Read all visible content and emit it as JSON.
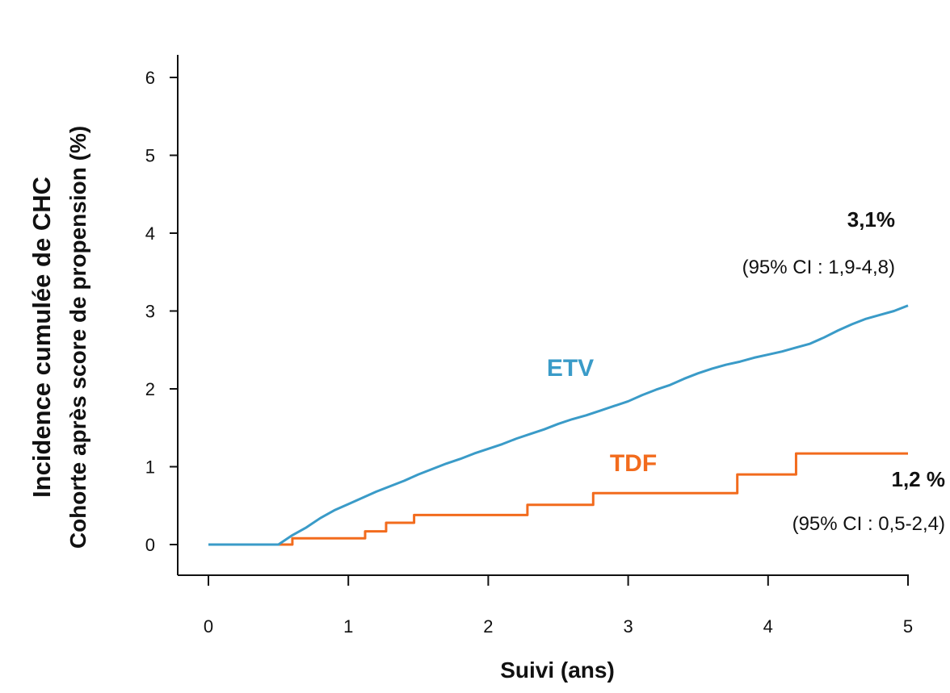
{
  "chart_data": {
    "type": "line",
    "title": "",
    "ylabel_line1": "Incidence cumulée de CHC",
    "ylabel_line2": "Cohorte après score de propension (%)",
    "xlabel": "Suivi (ans)",
    "xlim": [
      0,
      5
    ],
    "ylim": [
      0,
      6
    ],
    "xticks": [
      0,
      1,
      2,
      3,
      4,
      5
    ],
    "yticks": [
      0,
      1,
      2,
      3,
      4,
      5,
      6
    ],
    "grid": false,
    "series": [
      {
        "name": "ETV",
        "color": "#3a9bc8",
        "step": false,
        "x": [
          0,
          0.5,
          0.6,
          0.7,
          0.8,
          0.9,
          1.0,
          1.1,
          1.2,
          1.3,
          1.4,
          1.5,
          1.6,
          1.7,
          1.8,
          1.9,
          2.0,
          2.1,
          2.2,
          2.3,
          2.4,
          2.5,
          2.6,
          2.7,
          2.8,
          2.9,
          3.0,
          3.1,
          3.2,
          3.3,
          3.4,
          3.5,
          3.6,
          3.7,
          3.8,
          3.9,
          4.0,
          4.1,
          4.2,
          4.3,
          4.4,
          4.5,
          4.6,
          4.7,
          4.8,
          4.9,
          5.0
        ],
        "values": [
          0,
          0,
          0.12,
          0.22,
          0.34,
          0.44,
          0.52,
          0.6,
          0.68,
          0.75,
          0.82,
          0.9,
          0.97,
          1.04,
          1.1,
          1.17,
          1.23,
          1.29,
          1.36,
          1.42,
          1.48,
          1.55,
          1.61,
          1.66,
          1.72,
          1.78,
          1.84,
          1.92,
          1.99,
          2.05,
          2.13,
          2.2,
          2.26,
          2.31,
          2.35,
          2.4,
          2.44,
          2.48,
          2.53,
          2.58,
          2.66,
          2.75,
          2.83,
          2.9,
          2.95,
          3.0,
          3.07
        ]
      },
      {
        "name": "TDF",
        "color": "#f26b1d",
        "step": true,
        "x": [
          0,
          0.5,
          0.6,
          1.12,
          1.27,
          1.47,
          2.28,
          2.75,
          3.78,
          4.2,
          5.0
        ],
        "values": [
          0,
          0,
          0.08,
          0.17,
          0.28,
          0.38,
          0.51,
          0.66,
          0.9,
          1.17,
          1.17
        ]
      }
    ],
    "annotations": {
      "etv_value": "3,1%",
      "etv_ci": "(95% CI : 1,9-4,8)",
      "tdf_value": "1,2 %",
      "tdf_ci": "(95% CI : 0,5-2,4)"
    }
  }
}
